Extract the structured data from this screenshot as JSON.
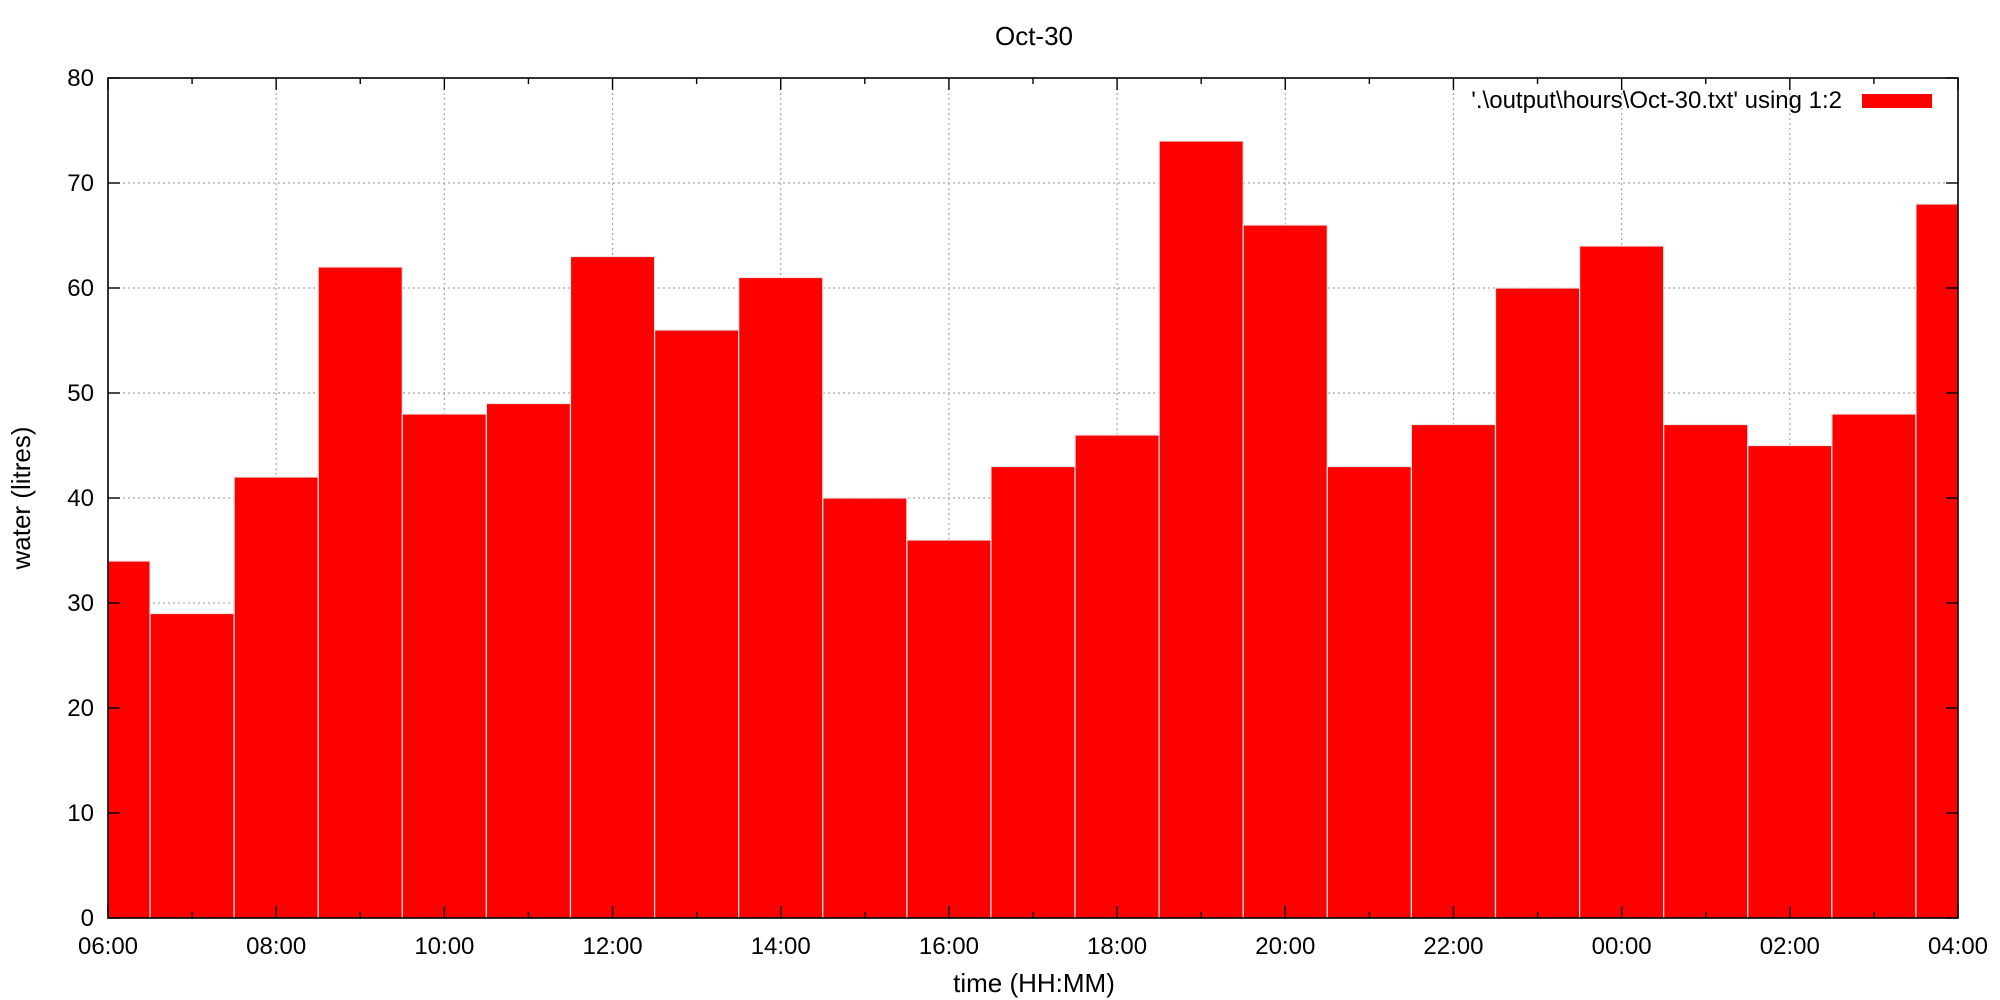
{
  "chart_data": {
    "type": "bar",
    "title": "Oct-30",
    "xlabel": "time (HH:MM)",
    "ylabel": "water (litres)",
    "ylim": [
      0,
      80
    ],
    "y_ticks": [
      0,
      10,
      20,
      30,
      40,
      50,
      60,
      70,
      80
    ],
    "x_ticks": [
      "06:00",
      "08:00",
      "10:00",
      "12:00",
      "14:00",
      "16:00",
      "18:00",
      "20:00",
      "22:00",
      "00:00",
      "02:00",
      "04:00"
    ],
    "grid": true,
    "legend_position": "top-right",
    "series": [
      {
        "name": "'.\\output\\hours\\Oct-30.txt' using 1:2",
        "color": "#ff0000",
        "x": [
          "06:00",
          "07:00",
          "08:00",
          "09:00",
          "10:00",
          "11:00",
          "12:00",
          "13:00",
          "14:00",
          "15:00",
          "16:00",
          "17:00",
          "18:00",
          "19:00",
          "20:00",
          "21:00",
          "22:00",
          "23:00",
          "00:00",
          "01:00",
          "02:00",
          "03:00",
          "04:00"
        ],
        "values": [
          34,
          29,
          42,
          62,
          48,
          49,
          63,
          56,
          61,
          40,
          36,
          43,
          46,
          74,
          66,
          43,
          47,
          60,
          64,
          47,
          45,
          48,
          68
        ]
      }
    ]
  }
}
